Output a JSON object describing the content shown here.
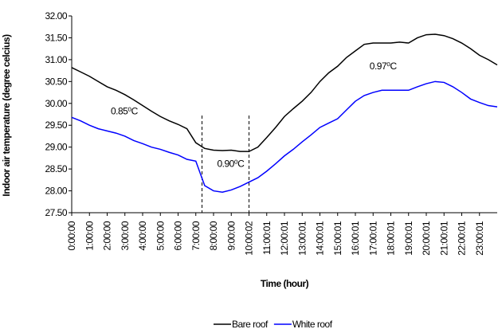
{
  "chart_data": {
    "type": "line",
    "ylabel": "Indoor air temperature (degree celcius)",
    "xlabel": "Time (hour)",
    "x": [
      0,
      0.5,
      1,
      1.5,
      2,
      2.5,
      3,
      3.5,
      4,
      4.5,
      5,
      5.5,
      6,
      6.5,
      7,
      7.5,
      8,
      8.5,
      9,
      9.5,
      10,
      10.5,
      11,
      11.5,
      12,
      12.5,
      13,
      13.5,
      14,
      14.5,
      15,
      15.5,
      16,
      16.5,
      17,
      17.5,
      18,
      18.5,
      19,
      19.5,
      20,
      20.5,
      21,
      21.5,
      22,
      22.5,
      23,
      23.5,
      24
    ],
    "series": [
      {
        "name": "Bare roof",
        "color": "#000000",
        "values": [
          30.82,
          30.72,
          30.62,
          30.5,
          30.38,
          30.3,
          30.2,
          30.08,
          29.95,
          29.82,
          29.7,
          29.6,
          29.52,
          29.42,
          29.1,
          28.97,
          28.93,
          28.92,
          28.93,
          28.9,
          28.9,
          29.0,
          29.22,
          29.45,
          29.7,
          29.88,
          30.05,
          30.25,
          30.5,
          30.7,
          30.85,
          31.05,
          31.2,
          31.35,
          31.38,
          31.38,
          31.38,
          31.4,
          31.38,
          31.5,
          31.57,
          31.58,
          31.55,
          31.48,
          31.38,
          31.25,
          31.1,
          31.0,
          30.88
        ]
      },
      {
        "name": "White roof",
        "color": "#0000ff",
        "values": [
          29.68,
          29.6,
          29.5,
          29.42,
          29.37,
          29.32,
          29.25,
          29.15,
          29.08,
          29.0,
          28.95,
          28.88,
          28.82,
          28.72,
          28.68,
          28.12,
          28.0,
          27.97,
          28.02,
          28.1,
          28.2,
          28.3,
          28.45,
          28.62,
          28.8,
          28.95,
          29.12,
          29.28,
          29.45,
          29.55,
          29.65,
          29.85,
          30.05,
          30.18,
          30.25,
          30.3,
          30.3,
          30.3,
          30.3,
          30.38,
          30.45,
          30.5,
          30.48,
          30.38,
          30.25,
          30.1,
          30.02,
          29.95,
          29.92
        ]
      }
    ],
    "xlim": [
      0,
      24
    ],
    "xticks": [
      {
        "value": 0,
        "label": "0:00:00"
      },
      {
        "value": 1,
        "label": "1:00:00"
      },
      {
        "value": 2,
        "label": "2:00:00"
      },
      {
        "value": 3,
        "label": "3:00:00"
      },
      {
        "value": 4,
        "label": "4:00:00"
      },
      {
        "value": 5,
        "label": "5:00:00"
      },
      {
        "value": 6,
        "label": "6:00:00"
      },
      {
        "value": 7,
        "label": "7:00:00"
      },
      {
        "value": 8,
        "label": "8:00:00"
      },
      {
        "value": 9,
        "label": "9:00:00"
      },
      {
        "value": 10,
        "label": "10:00:02"
      },
      {
        "value": 11,
        "label": "11:00:01"
      },
      {
        "value": 12,
        "label": "12:00:01"
      },
      {
        "value": 13,
        "label": "13:00:01"
      },
      {
        "value": 14,
        "label": "14:00:01"
      },
      {
        "value": 15,
        "label": "15:00:01"
      },
      {
        "value": 16,
        "label": "16:00:01"
      },
      {
        "value": 17,
        "label": "17:00:01"
      },
      {
        "value": 18,
        "label": "18:00:01"
      },
      {
        "value": 19,
        "label": "19:00:01"
      },
      {
        "value": 20,
        "label": "20:00:01"
      },
      {
        "value": 21,
        "label": "21:00:01"
      },
      {
        "value": 22,
        "label": "22:00:01"
      },
      {
        "value": 23,
        "label": "23:00:01"
      }
    ],
    "ylim": [
      27.5,
      32
    ],
    "yticks": [
      {
        "value": 27.5,
        "label": "27.50"
      },
      {
        "value": 28,
        "label": "28.00"
      },
      {
        "value": 28.5,
        "label": "28.50"
      },
      {
        "value": 29,
        "label": "29.00"
      },
      {
        "value": 29.5,
        "label": "29.50"
      },
      {
        "value": 30,
        "label": "30.00"
      },
      {
        "value": 30.5,
        "label": "30.50"
      },
      {
        "value": 31,
        "label": "31.00"
      },
      {
        "value": 31.5,
        "label": "31.50"
      },
      {
        "value": 32,
        "label": "32.00"
      }
    ],
    "vlines": [
      7.35,
      10
    ],
    "annotations": [
      {
        "text": "0.85⁰C",
        "x": 2.2,
        "y": 29.75
      },
      {
        "text": "0.90⁰C",
        "x": 8.2,
        "y": 28.55
      },
      {
        "text": "0.97⁰C",
        "x": 16.8,
        "y": 30.78
      }
    ],
    "grid": false,
    "legend": "bottom"
  }
}
